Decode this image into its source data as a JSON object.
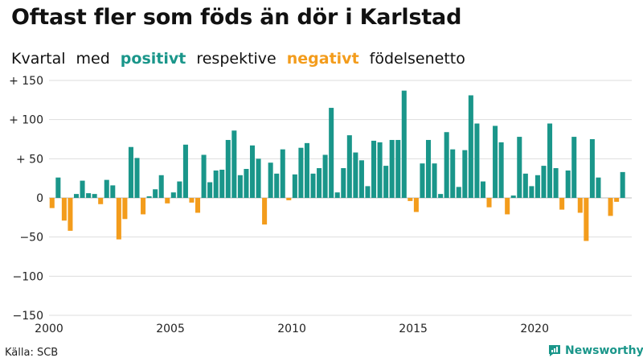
{
  "title": "Oftast fler som föds än dör i Karlstad",
  "subtitle": {
    "part1": "Kvartal",
    "part2": "med",
    "positive": "positivt",
    "part3": "respektive",
    "negative": "negativt",
    "part4": "födelsenetto"
  },
  "source": "Källa: SCB",
  "brand": "Newsworthy",
  "colors": {
    "positive": "#1a968a",
    "negative": "#f39c1c",
    "text": "#111111",
    "grid": "#dddddd"
  },
  "chart_data": {
    "type": "bar",
    "ylim": [
      -150,
      150
    ],
    "yticks": [
      150,
      100,
      50,
      0,
      -50,
      -100,
      -150
    ],
    "ytick_labels": [
      "+ 150",
      "+ 100",
      "+  50",
      "0",
      "−50",
      "−100",
      "−150"
    ],
    "xlim": [
      2000,
      2024
    ],
    "xticks": [
      2000,
      2005,
      2010,
      2015,
      2020
    ],
    "xtick_labels": [
      "2000",
      "2005",
      "2010",
      "2015",
      "2020"
    ],
    "grid": true,
    "quarter_start": "2000-Q1",
    "values": [
      -13,
      26,
      -29,
      -42,
      5,
      22,
      6,
      5,
      -8,
      23,
      16,
      -53,
      -27,
      65,
      51,
      -21,
      2,
      11,
      29,
      -7,
      7,
      21,
      68,
      -6,
      -19,
      55,
      20,
      35,
      36,
      74,
      86,
      29,
      37,
      67,
      50,
      -34,
      45,
      31,
      62,
      -3,
      30,
      64,
      70,
      31,
      38,
      55,
      115,
      7,
      38,
      80,
      58,
      48,
      15,
      73,
      71,
      41,
      74,
      74,
      137,
      -4,
      -18,
      44,
      74,
      44,
      5,
      84,
      62,
      14,
      61,
      131,
      95,
      21,
      -12,
      92,
      71,
      -21,
      3,
      78,
      31,
      15,
      29,
      41,
      95,
      38,
      -15,
      35,
      78,
      -19,
      -55,
      75,
      26,
      0,
      -23,
      -5,
      33
    ]
  }
}
